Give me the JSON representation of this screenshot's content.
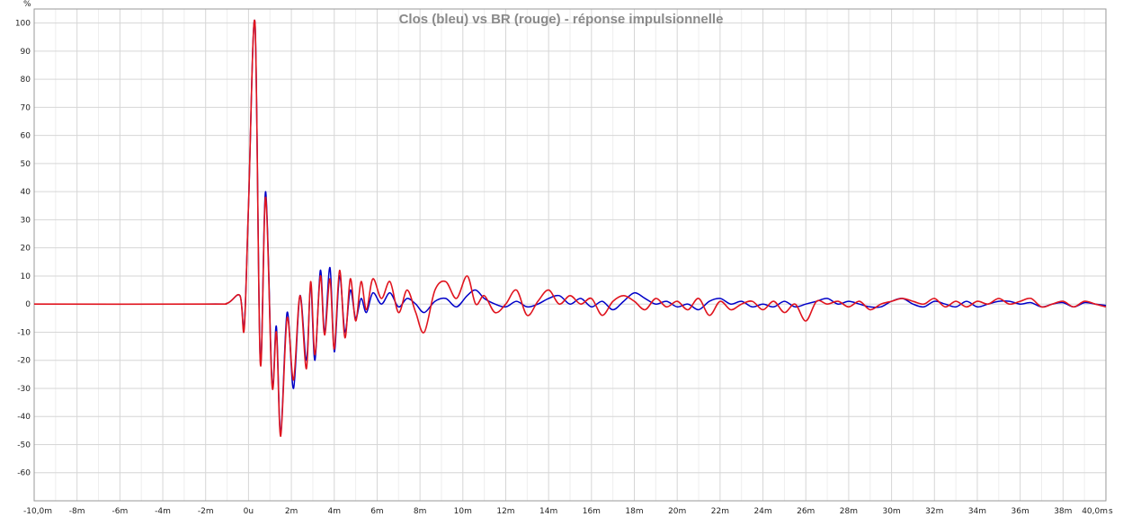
{
  "chart_data": {
    "type": "line",
    "title": "Clos (bleu) vs BR (rouge) - réponse impulsionnelle",
    "ylabel": "%",
    "xlabel": "",
    "x_unit": "s",
    "xlim": [
      -10,
      40
    ],
    "ylim": [
      -70,
      105
    ],
    "grid": true,
    "x_ticks": [
      {
        "v": -10,
        "label": "-10,0m"
      },
      {
        "v": -8,
        "label": "-8m"
      },
      {
        "v": -6,
        "label": "-6m"
      },
      {
        "v": -4,
        "label": "-4m"
      },
      {
        "v": -2,
        "label": "-2m"
      },
      {
        "v": 0,
        "label": "0u"
      },
      {
        "v": 2,
        "label": "2m"
      },
      {
        "v": 4,
        "label": "4m"
      },
      {
        "v": 6,
        "label": "6m"
      },
      {
        "v": 8,
        "label": "8m"
      },
      {
        "v": 10,
        "label": "10m"
      },
      {
        "v": 12,
        "label": "12m"
      },
      {
        "v": 14,
        "label": "14m"
      },
      {
        "v": 16,
        "label": "16m"
      },
      {
        "v": 18,
        "label": "18m"
      },
      {
        "v": 20,
        "label": "20m"
      },
      {
        "v": 22,
        "label": "22m"
      },
      {
        "v": 24,
        "label": "24m"
      },
      {
        "v": 26,
        "label": "26m"
      },
      {
        "v": 28,
        "label": "28m"
      },
      {
        "v": 30,
        "label": "30m"
      },
      {
        "v": 32,
        "label": "32m"
      },
      {
        "v": 34,
        "label": "34m"
      },
      {
        "v": 36,
        "label": "36m"
      },
      {
        "v": 38,
        "label": "38m"
      },
      {
        "v": 40,
        "label": "40,0m"
      }
    ],
    "y_ticks": [
      {
        "v": 100,
        "label": "100"
      },
      {
        "v": 90,
        "label": "90"
      },
      {
        "v": 80,
        "label": "80"
      },
      {
        "v": 70,
        "label": "70"
      },
      {
        "v": 60,
        "label": "60"
      },
      {
        "v": 50,
        "label": "50"
      },
      {
        "v": 40,
        "label": "40"
      },
      {
        "v": 30,
        "label": "30"
      },
      {
        "v": 20,
        "label": "20"
      },
      {
        "v": 10,
        "label": "10"
      },
      {
        "v": 0,
        "label": "0"
      },
      {
        "v": -10,
        "label": "-10"
      },
      {
        "v": -20,
        "label": "-20"
      },
      {
        "v": -30,
        "label": "-30"
      },
      {
        "v": -40,
        "label": "-40"
      },
      {
        "v": -50,
        "label": "-50"
      },
      {
        "v": -60,
        "label": "-60"
      }
    ],
    "series": [
      {
        "color": "#0000c8",
        "x": [
          -10,
          -2,
          -1,
          -0.4,
          -0.2,
          0,
          0.3,
          0.55,
          0.8,
          1.1,
          1.3,
          1.5,
          1.8,
          2.1,
          2.4,
          2.7,
          2.9,
          3.1,
          3.35,
          3.55,
          3.8,
          4.0,
          4.25,
          4.5,
          4.75,
          5.0,
          5.25,
          5.5,
          5.8,
          6.2,
          6.6,
          7.0,
          7.4,
          7.8,
          8.2,
          8.7,
          9.2,
          9.7,
          10.2,
          10.6,
          11.0,
          11.5,
          12.0,
          12.5,
          13.0,
          13.5,
          14.0,
          14.5,
          15.0,
          15.5,
          16.0,
          16.5,
          17.0,
          17.5,
          18.0,
          18.5,
          19.0,
          19.5,
          20.0,
          20.5,
          21.0,
          21.5,
          22.0,
          22.5,
          23.0,
          23.5,
          24.0,
          24.5,
          25.0,
          25.5,
          26.0,
          26.5,
          27.0,
          27.5,
          28.0,
          28.5,
          29.0,
          29.5,
          30.0,
          30.5,
          31.0,
          31.5,
          32.0,
          32.5,
          33.0,
          33.5,
          34.0,
          34.5,
          35.0,
          35.5,
          36.0,
          36.5,
          37.0,
          37.5,
          38.0,
          38.5,
          39.0,
          39.5,
          40.0
        ],
        "y": [
          0,
          0,
          0.3,
          3,
          -8,
          35,
          100,
          -20,
          40,
          -28,
          -8,
          -46,
          -3,
          -30,
          3,
          -20,
          6,
          -20,
          12,
          -10,
          13,
          -17,
          10,
          -10,
          5,
          -5,
          2,
          -3,
          4,
          0,
          4,
          -1,
          2,
          0,
          -3,
          1,
          2,
          -1,
          3,
          5,
          2,
          0,
          -1,
          1,
          -1,
          0,
          2,
          3,
          0,
          2,
          -1,
          1,
          -2,
          1,
          4,
          2,
          0,
          1,
          -1,
          0,
          -2,
          1,
          2,
          0,
          1,
          -1,
          0,
          -1,
          1,
          -1,
          0,
          1,
          2,
          0,
          1,
          0,
          -1,
          -1,
          1,
          2,
          0,
          -1,
          1,
          0,
          -1,
          1,
          -1,
          0,
          1,
          1,
          0,
          0.5,
          -1,
          0,
          0.5,
          -1,
          0.5,
          0,
          -0.5
        ]
      },
      {
        "color": "#e0141e",
        "x": [
          -10,
          -2,
          -1,
          -0.4,
          -0.2,
          0,
          0.3,
          0.55,
          0.8,
          1.1,
          1.3,
          1.5,
          1.8,
          2.1,
          2.4,
          2.7,
          2.9,
          3.1,
          3.35,
          3.55,
          3.8,
          4.0,
          4.25,
          4.5,
          4.75,
          5.0,
          5.25,
          5.5,
          5.8,
          6.2,
          6.6,
          7.0,
          7.4,
          7.8,
          8.2,
          8.7,
          9.2,
          9.7,
          10.2,
          10.6,
          11.0,
          11.5,
          12.0,
          12.5,
          13.0,
          13.5,
          14.0,
          14.5,
          15.0,
          15.5,
          16.0,
          16.5,
          17.0,
          17.5,
          18.0,
          18.5,
          19.0,
          19.5,
          20.0,
          20.5,
          21.0,
          21.5,
          22.0,
          22.5,
          23.0,
          23.5,
          24.0,
          24.5,
          25.0,
          25.5,
          26.0,
          26.5,
          27.0,
          27.5,
          28.0,
          28.5,
          29.0,
          29.5,
          30.0,
          30.5,
          31.0,
          31.5,
          32.0,
          32.5,
          33.0,
          33.5,
          34.0,
          34.5,
          35.0,
          35.5,
          36.0,
          36.5,
          37.0,
          37.5,
          38.0,
          38.5,
          39.0,
          39.5,
          40.0
        ],
        "y": [
          0,
          0,
          0.3,
          3,
          -9,
          35,
          100,
          -21,
          38,
          -29,
          -10,
          -47,
          -5,
          -27,
          3,
          -23,
          8,
          -18,
          10,
          -11,
          9,
          -16,
          12,
          -12,
          9,
          -6,
          8,
          -2,
          9,
          2,
          8,
          -3,
          5,
          -3,
          -10,
          5,
          8,
          2,
          10,
          0,
          3,
          -3,
          0,
          5,
          -4,
          1,
          5,
          0,
          3,
          0,
          2,
          -4,
          1,
          3,
          1,
          -2,
          2,
          -1,
          1,
          -2,
          2,
          -4,
          1,
          -2,
          0,
          1,
          -2,
          1,
          -3,
          0,
          -6,
          1,
          0,
          1,
          -1,
          1,
          -2,
          0,
          1,
          2,
          1,
          0,
          2,
          -1,
          1,
          -1,
          1,
          0,
          2,
          0,
          1,
          2,
          -1,
          0,
          1,
          -1,
          1,
          0,
          -1
        ]
      }
    ]
  }
}
